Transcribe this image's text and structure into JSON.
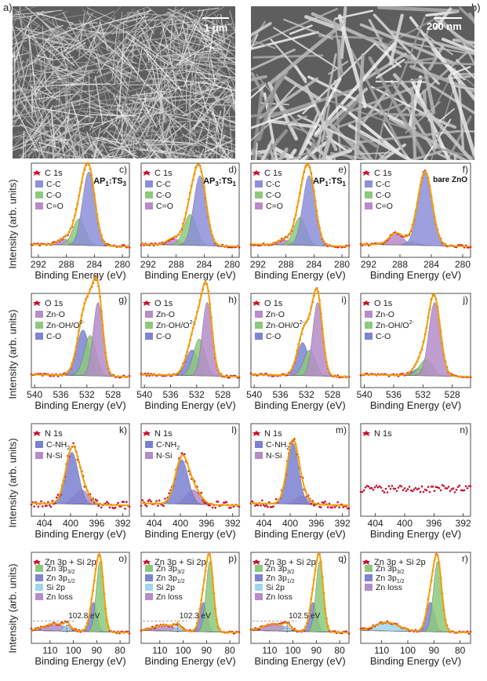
{
  "figure": {
    "top_labels": {
      "a": "a)",
      "b": "b)"
    },
    "sem_images": [
      {
        "label": "a)",
        "scale_text": "1 μm"
      },
      {
        "label": "b)",
        "scale_text": "200 nm"
      }
    ],
    "y_axis_label": "Intensity (arb. units)",
    "x_axis_label": "Binding Energy (eV)"
  },
  "colors": {
    "data_points": "#c8102e",
    "envelope": "#f5a000",
    "cc_c": "#8d8fd9",
    "co_c": "#8cc97c",
    "cdo_c": "#b98ac9",
    "znO_o": "#b58dc8",
    "znoh_o": "#8cc97c",
    "co_o": "#7d84d0",
    "cnh2_n": "#7b80d0",
    "nsi_n": "#b48bc7",
    "zn32": "#8cc97c",
    "zn12": "#7d84d0",
    "si2p": "#9fd7f0",
    "znloss": "#b58dc8"
  },
  "chart_data": [
    {
      "type": "line",
      "panel": "c)",
      "region": "C 1s",
      "sample": "AP1:TS3",
      "sample_main": "AP",
      "sample_sub1": "1",
      "sample_mid": ":TS",
      "sample_sub2": "3",
      "xticks": [
        292,
        288,
        284,
        280
      ],
      "xlim": [
        293,
        279
      ],
      "components": [
        {
          "name": "C-C",
          "center": 284.8,
          "amp": 1.0,
          "width": 0.9
        },
        {
          "name": "C-O",
          "center": 286.2,
          "amp": 0.36,
          "width": 0.9
        },
        {
          "name": "C=O",
          "center": 288.3,
          "amp": 0.08,
          "width": 0.9
        }
      ],
      "legend": [
        "C-C",
        "C-O",
        "C=O"
      ]
    },
    {
      "type": "line",
      "panel": "d)",
      "region": "C 1s",
      "sample": "AP3:TS1",
      "sample_main": "AP",
      "sample_sub1": "3",
      "sample_mid": ":TS",
      "sample_sub2": "1",
      "xticks": [
        292,
        288,
        284,
        280
      ],
      "xlim": [
        293,
        279
      ],
      "components": [
        {
          "name": "C-C",
          "center": 284.6,
          "amp": 0.95,
          "width": 0.9
        },
        {
          "name": "C-O",
          "center": 286.0,
          "amp": 0.42,
          "width": 0.9
        },
        {
          "name": "C=O",
          "center": 288.4,
          "amp": 0.09,
          "width": 0.9
        }
      ],
      "legend": [
        "C-C",
        "C-O",
        "C=O"
      ]
    },
    {
      "type": "line",
      "panel": "e)",
      "region": "C 1s",
      "sample": "AP1:TS1",
      "sample_main": "AP",
      "sample_sub1": "1",
      "sample_mid": ":TS",
      "sample_sub2": "1",
      "xticks": [
        292,
        288,
        284,
        280
      ],
      "xlim": [
        293,
        279
      ],
      "components": [
        {
          "name": "C-C",
          "center": 284.7,
          "amp": 0.95,
          "width": 0.9
        },
        {
          "name": "C-O",
          "center": 286.0,
          "amp": 0.38,
          "width": 0.9
        },
        {
          "name": "C=O",
          "center": 288.3,
          "amp": 0.07,
          "width": 0.9
        }
      ],
      "legend": [
        "C-C",
        "C-O",
        "C=O"
      ]
    },
    {
      "type": "line",
      "panel": "f)",
      "region": "C 1s",
      "sample": "bare ZnO",
      "xticks": [
        292,
        288,
        284,
        280
      ],
      "xlim": [
        293,
        279
      ],
      "components": [
        {
          "name": "C-C",
          "center": 284.8,
          "amp": 1.0,
          "width": 0.9
        },
        {
          "name": "C-O",
          "center": 288.5,
          "amp": 0.16,
          "width": 0.9
        },
        {
          "name": "C=O",
          "center": 286.5,
          "amp": 0.05,
          "width": 0.8
        }
      ],
      "legend": [
        "C-C",
        "C-O",
        "C=O"
      ]
    },
    {
      "type": "line",
      "panel": "g)",
      "region": "O 1s",
      "xticks": [
        540,
        536,
        532,
        528
      ],
      "xlim": [
        540.5,
        525.5
      ],
      "components": [
        {
          "name": "Zn-O",
          "center": 530.3,
          "amp": 1.0,
          "width": 0.75
        },
        {
          "name": "Zn-OH/O2-",
          "center": 531.5,
          "amp": 0.55,
          "width": 0.9
        },
        {
          "name": "C-O",
          "center": 532.6,
          "amp": 0.62,
          "width": 1.0
        }
      ],
      "legend": [
        "Zn-O",
        "Zn-OH/O",
        "C-O"
      ]
    },
    {
      "type": "line",
      "panel": "h)",
      "region": "O 1s",
      "xticks": [
        540,
        536,
        532,
        528
      ],
      "xlim": [
        540.5,
        525.5
      ],
      "components": [
        {
          "name": "Zn-O",
          "center": 530.4,
          "amp": 1.0,
          "width": 0.75
        },
        {
          "name": "Zn-OH/O2-",
          "center": 531.6,
          "amp": 0.5,
          "width": 0.9
        },
        {
          "name": "C-O",
          "center": 532.7,
          "amp": 0.35,
          "width": 1.0
        }
      ],
      "legend": [
        "Zn-O",
        "Zn-OH/O",
        "C-O"
      ]
    },
    {
      "type": "line",
      "panel": "i)",
      "region": "O 1s",
      "xticks": [
        540,
        536,
        532,
        528
      ],
      "xlim": [
        540.5,
        525.5
      ],
      "components": [
        {
          "name": "Zn-O",
          "center": 530.3,
          "amp": 1.0,
          "width": 0.75
        },
        {
          "name": "Zn-OH/O2-",
          "center": 531.5,
          "amp": 0.35,
          "width": 0.9
        },
        {
          "name": "C-O",
          "center": 532.6,
          "amp": 0.45,
          "width": 0.9
        }
      ],
      "legend": [
        "Zn-O",
        "Zn-OH/O",
        "C-O"
      ]
    },
    {
      "type": "line",
      "panel": "j)",
      "region": "O 1s",
      "xticks": [
        540,
        536,
        532,
        528
      ],
      "xlim": [
        540.5,
        525.5
      ],
      "components": [
        {
          "name": "Zn-O",
          "center": 530.4,
          "amp": 1.0,
          "width": 0.8
        },
        {
          "name": "Zn-OH/O2-",
          "center": 531.6,
          "amp": 0.22,
          "width": 0.9
        },
        {
          "name": "C-O",
          "center": 532.5,
          "amp": 0.1,
          "width": 0.9
        }
      ],
      "legend": [
        "Zn-O",
        "Zn-OH/O",
        "C-O"
      ]
    },
    {
      "type": "line",
      "panel": "k)",
      "region": "N 1s",
      "xticks": [
        404,
        400,
        396,
        392
      ],
      "xlim": [
        406,
        391
      ],
      "components": [
        {
          "name": "C-NH2",
          "center": 399.8,
          "amp": 0.72,
          "width": 1.0
        },
        {
          "name": "N-Si",
          "center": 398.3,
          "amp": 0.2,
          "width": 1.1
        }
      ],
      "legend": [
        "C-NH",
        "N-Si"
      ]
    },
    {
      "type": "line",
      "panel": "l)",
      "region": "N 1s",
      "xticks": [
        404,
        400,
        396,
        392
      ],
      "xlim": [
        406,
        391
      ],
      "components": [
        {
          "name": "C-NH2",
          "center": 399.8,
          "amp": 0.62,
          "width": 1.0
        },
        {
          "name": "N-Si",
          "center": 398.0,
          "amp": 0.2,
          "width": 1.1
        }
      ],
      "legend": [
        "C-NH",
        "N-Si"
      ]
    },
    {
      "type": "line",
      "panel": "m)",
      "region": "N 1s",
      "xticks": [
        404,
        400,
        396,
        392
      ],
      "xlim": [
        406,
        391
      ],
      "components": [
        {
          "name": "C-NH2",
          "center": 399.6,
          "amp": 0.85,
          "width": 0.9
        },
        {
          "name": "N-Si",
          "center": 398.2,
          "amp": 0.12,
          "width": 1.0
        }
      ],
      "legend": [
        "C-NH",
        "N-Si"
      ]
    },
    {
      "type": "line",
      "panel": "n)",
      "region": "N 1s",
      "xticks": [
        404,
        400,
        396,
        392
      ],
      "xlim": [
        406,
        391
      ],
      "components": [],
      "legend": [],
      "flat_level": 0.25
    },
    {
      "type": "line",
      "panel": "o)",
      "region": "Zn 3p + Si 2p",
      "xticks": [
        110,
        100,
        90,
        80
      ],
      "xlim": [
        118,
        76
      ],
      "marker": "102.8 eV",
      "marker_x": 102.8,
      "components": [
        {
          "name": "Zn 3p3/2",
          "center": 88.6,
          "amp": 1.0,
          "width": 1.6
        },
        {
          "name": "Zn 3p1/2",
          "center": 91.4,
          "amp": 0.42,
          "width": 1.6
        },
        {
          "name": "Si 2p",
          "center": 102.8,
          "amp": 0.08,
          "width": 1.4
        },
        {
          "name": "Zn loss",
          "center": 108,
          "amp": 0.1,
          "width": 4.5
        }
      ],
      "legend": [
        "Zn 3p",
        "Zn 3p",
        "Si 2p",
        "Zn loss"
      ],
      "legend_sub": [
        "3/2",
        "1/2",
        "",
        ""
      ]
    },
    {
      "type": "line",
      "panel": "p)",
      "region": "Zn 3p + Si 2p",
      "xticks": [
        110,
        100,
        90,
        80
      ],
      "xlim": [
        118,
        76
      ],
      "marker": "102.3 eV",
      "marker_x": 102.3,
      "components": [
        {
          "name": "Zn 3p3/2",
          "center": 88.6,
          "amp": 1.0,
          "width": 1.6
        },
        {
          "name": "Zn 3p1/2",
          "center": 91.4,
          "amp": 0.42,
          "width": 1.6
        },
        {
          "name": "Si 2p",
          "center": 102.3,
          "amp": 0.07,
          "width": 1.4
        },
        {
          "name": "Zn loss",
          "center": 108,
          "amp": 0.08,
          "width": 4.5
        }
      ],
      "legend": [
        "Zn 3p",
        "Zn 3p",
        "Si 2p",
        "Zn loss"
      ],
      "legend_sub": [
        "3/2",
        "1/2",
        "",
        ""
      ]
    },
    {
      "type": "line",
      "panel": "q)",
      "region": "Zn 3p + Si 2p",
      "xticks": [
        110,
        100,
        90,
        80
      ],
      "xlim": [
        118,
        76
      ],
      "marker": "102.5 eV",
      "marker_x": 102.5,
      "components": [
        {
          "name": "Zn 3p3/2",
          "center": 88.6,
          "amp": 1.0,
          "width": 1.6
        },
        {
          "name": "Zn 3p1/2",
          "center": 91.4,
          "amp": 0.42,
          "width": 1.6
        },
        {
          "name": "Si 2p",
          "center": 102.5,
          "amp": 0.07,
          "width": 1.4
        },
        {
          "name": "Zn loss",
          "center": 108,
          "amp": 0.1,
          "width": 4.5
        }
      ],
      "legend": [
        "Zn 3p",
        "Zn 3p",
        "Si 2p",
        "Zn loss"
      ],
      "legend_sub": [
        "3/2",
        "1/2",
        "",
        ""
      ]
    },
    {
      "type": "line",
      "panel": "r)",
      "region": "Zn 3p + Si 2p",
      "xticks": [
        110,
        100,
        90,
        80
      ],
      "xlim": [
        118,
        76
      ],
      "components": [
        {
          "name": "Zn 3p3/2",
          "center": 88.6,
          "amp": 1.0,
          "width": 1.6
        },
        {
          "name": "Zn 3p1/2",
          "center": 91.4,
          "amp": 0.42,
          "width": 1.6
        },
        {
          "name": "Zn loss",
          "center": 108,
          "amp": 0.12,
          "width": 4.5
        }
      ],
      "legend": [
        "Zn 3p",
        "Zn 3p",
        "Zn loss"
      ],
      "legend_sub": [
        "3/2",
        "1/2",
        ""
      ]
    }
  ]
}
